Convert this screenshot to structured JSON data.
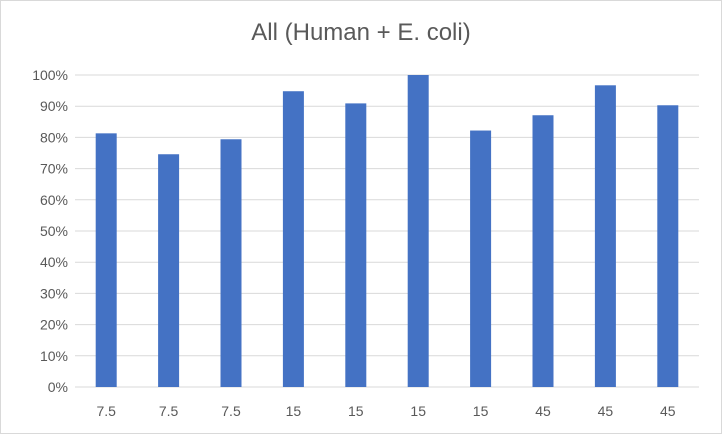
{
  "chart_data": {
    "type": "bar",
    "title": "All (Human + E. coli)",
    "xlabel": "",
    "ylabel": "",
    "categories": [
      "7.5",
      "7.5",
      "7.5",
      "15",
      "15",
      "15",
      "15",
      "45",
      "45",
      "45"
    ],
    "values": [
      81.3,
      74.6,
      79.4,
      94.8,
      90.9,
      100,
      82.2,
      87.1,
      96.7,
      90.3
    ],
    "ylim": [
      0,
      100
    ],
    "y_ticks": [
      0,
      10,
      20,
      30,
      40,
      50,
      60,
      70,
      80,
      90,
      100
    ],
    "y_tick_format": "percent",
    "grid": true,
    "legend": "none",
    "bar_color": "#4472c4",
    "gridline_color": "#d9d9d9",
    "text_color": "#595959"
  }
}
